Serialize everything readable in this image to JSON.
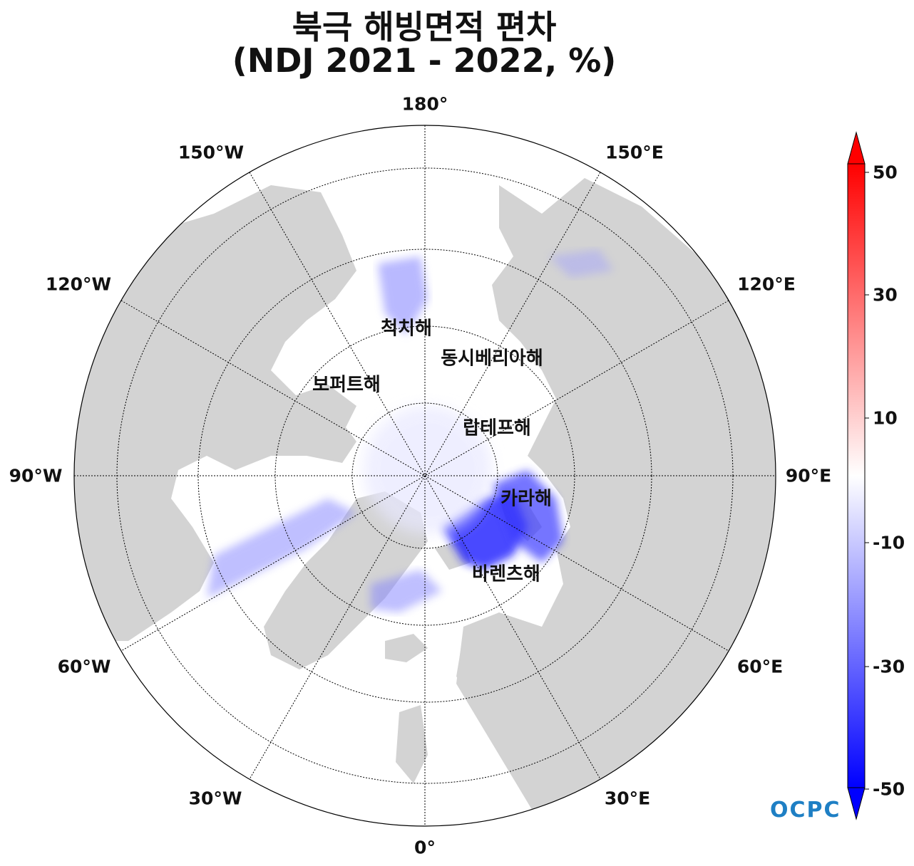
{
  "title": {
    "line1": "북극 해빙면적 편차",
    "line2": "(NDJ 2021 - 2022, %)"
  },
  "longitude_labels": {
    "lon_180": "180°",
    "lon_150e": "150°E",
    "lon_120e": "120°E",
    "lon_90e": "90°E",
    "lon_60e": "60°E",
    "lon_30e": "30°E",
    "lon_0": "0°",
    "lon_30w": "30°W",
    "lon_60w": "60°W",
    "lon_90w": "90°W",
    "lon_120w": "120°W",
    "lon_150w": "150°W"
  },
  "seas": {
    "chukchi": "척치해",
    "east_siberian": "동시베리아해",
    "beaufort": "보퍼트해",
    "laptev": "랍테프해",
    "kara": "카라해",
    "barents": "바렌츠해"
  },
  "colorbar": {
    "ticks": [
      "50",
      "30",
      "10",
      "-10",
      "-30",
      "-50"
    ],
    "min_color": "#0000ff",
    "mid_color": "#ffffff",
    "max_color": "#ff0000",
    "extend": "both"
  },
  "colors": {
    "land": "#d3d3d3",
    "ocean": "#ffffff",
    "anomaly_negative": "#3a3aff"
  },
  "logo": {
    "text": "OCPC"
  }
}
